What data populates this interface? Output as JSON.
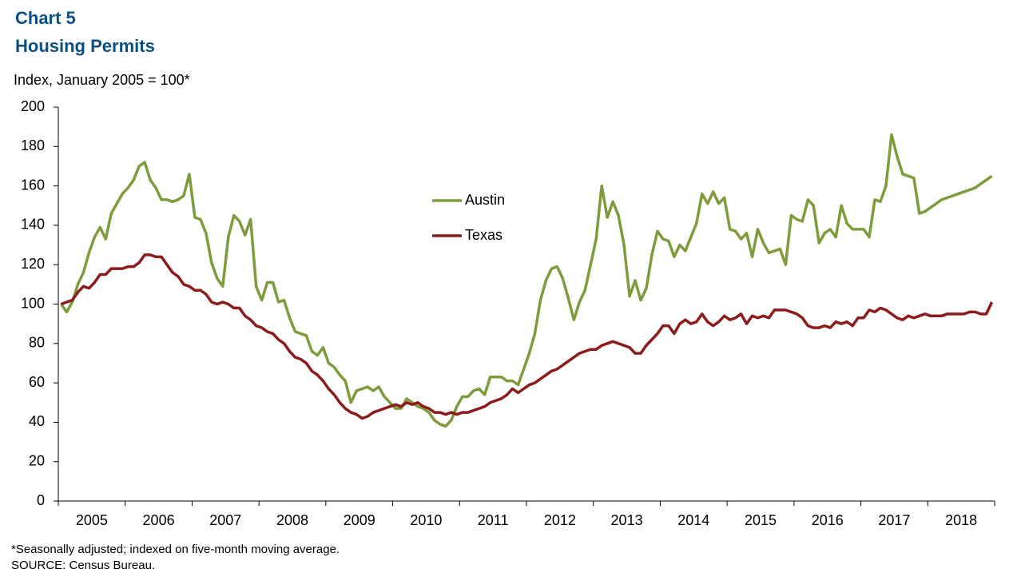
{
  "chart_data": {
    "type": "line",
    "title": "Chart 5",
    "subtitle": "Housing Permits",
    "y_axis_label": "Index, January 2005 = 100*",
    "footnote": "*Seasonally adjusted; indexed on five-month moving average.",
    "source": "SOURCE: Census Bureau.",
    "categories": [
      "2005",
      null,
      null,
      null,
      null,
      null,
      null,
      null,
      null,
      null,
      null,
      null,
      "2006",
      null,
      null,
      null,
      null,
      null,
      null,
      null,
      null,
      null,
      null,
      null,
      "2007",
      null,
      null,
      null,
      null,
      null,
      null,
      null,
      null,
      null,
      null,
      null,
      "2008",
      null,
      null,
      null,
      null,
      null,
      null,
      null,
      null,
      null,
      null,
      null,
      "2009",
      null,
      null,
      null,
      null,
      null,
      null,
      null,
      null,
      null,
      null,
      null,
      "2010",
      null,
      null,
      null,
      null,
      null,
      null,
      null,
      null,
      null,
      null,
      null,
      "2011",
      null,
      null,
      null,
      null,
      null,
      null,
      null,
      null,
      null,
      null,
      null,
      "2012",
      null,
      null,
      null,
      null,
      null,
      null,
      null,
      null,
      null,
      null,
      null,
      "2013",
      null,
      null,
      null,
      null,
      null,
      null,
      null,
      null,
      null,
      null,
      null,
      "2014",
      null,
      null,
      null,
      null,
      null,
      null,
      null,
      null,
      null,
      null,
      null,
      "2015",
      null,
      null,
      null,
      null,
      null,
      null,
      null,
      null,
      null,
      null,
      null,
      "2016",
      null,
      null,
      null,
      null,
      null,
      null,
      null,
      null,
      null,
      null,
      null,
      "2017",
      null,
      null,
      null,
      null,
      null,
      null,
      null,
      null,
      null,
      null,
      null,
      "2018",
      null,
      null,
      null,
      null,
      null,
      null,
      null,
      null,
      null,
      null,
      null
    ],
    "series": [
      {
        "name": "Austin",
        "color": "#7f9c3c",
        "values": [
          100,
          96,
          101,
          110,
          116,
          126,
          134,
          139,
          133,
          146,
          151,
          156,
          159,
          163,
          170,
          172,
          163,
          159,
          153,
          153,
          152,
          153,
          155,
          166,
          144,
          143,
          136,
          121,
          113,
          109,
          134,
          145,
          142,
          135,
          143,
          109,
          102,
          111,
          111,
          101,
          102,
          93,
          86,
          85,
          84,
          76,
          74,
          78,
          70,
          68,
          64,
          61,
          50,
          56,
          57,
          58,
          56,
          58,
          53,
          50,
          47,
          47,
          52,
          50,
          48,
          47,
          45,
          41,
          39,
          38,
          41,
          48,
          53,
          53,
          56,
          57,
          54,
          63,
          63,
          63,
          61,
          61,
          59,
          67,
          75,
          85,
          102,
          112,
          118,
          119,
          113,
          103,
          92,
          101,
          107,
          120,
          133,
          160,
          144,
          152,
          145,
          130,
          104,
          112,
          102,
          108,
          125,
          137,
          133,
          132,
          124,
          130,
          127,
          134,
          141,
          156,
          151,
          157,
          151,
          154,
          138,
          137,
          133,
          136,
          124,
          138,
          131,
          126,
          127,
          128,
          120,
          145,
          143,
          142,
          153,
          150,
          131,
          136,
          138,
          134,
          150,
          141,
          138,
          138,
          138,
          134,
          153,
          152,
          160,
          186,
          175,
          166,
          165,
          164,
          146,
          147,
          149,
          151,
          153,
          154,
          155,
          156,
          157,
          158,
          159,
          161,
          163,
          165
        ]
      },
      {
        "name": "Texas",
        "color": "#8c1c1c",
        "values": [
          100,
          101,
          102,
          106,
          109,
          108,
          111,
          115,
          115,
          118,
          118,
          118,
          119,
          119,
          121,
          125,
          125,
          124,
          124,
          120,
          116,
          114,
          110,
          109,
          107,
          107,
          105,
          101,
          100,
          101,
          100,
          98,
          98,
          94,
          92,
          89,
          88,
          86,
          85,
          82,
          80,
          76,
          73,
          72,
          70,
          66,
          64,
          61,
          57,
          54,
          50,
          47,
          45,
          44,
          42,
          43,
          45,
          46,
          47,
          48,
          49,
          48,
          50,
          49,
          50,
          48,
          47,
          45,
          45,
          44,
          45,
          44,
          45,
          45,
          46,
          47,
          48,
          50,
          51,
          52,
          54,
          57,
          55,
          57,
          59,
          60,
          62,
          64,
          66,
          67,
          69,
          71,
          73,
          75,
          76,
          77,
          77,
          79,
          80,
          81,
          80,
          79,
          78,
          75,
          75,
          79,
          82,
          85,
          89,
          89,
          85,
          90,
          92,
          90,
          91,
          95,
          91,
          89,
          91,
          94,
          92,
          93,
          95,
          90,
          94,
          93,
          94,
          93,
          97,
          97,
          97,
          96,
          95,
          93,
          89,
          88,
          88,
          89,
          88,
          91,
          90,
          91,
          89,
          93,
          93,
          97,
          96,
          98,
          97,
          95,
          93,
          92,
          94,
          93,
          94,
          95,
          94,
          94,
          94,
          95,
          95,
          95,
          95,
          96,
          96,
          95,
          95,
          101
        ]
      }
    ],
    "ylim": [
      0,
      200
    ],
    "yticks": [
      0,
      20,
      40,
      60,
      80,
      100,
      120,
      140,
      160,
      180,
      200
    ]
  }
}
